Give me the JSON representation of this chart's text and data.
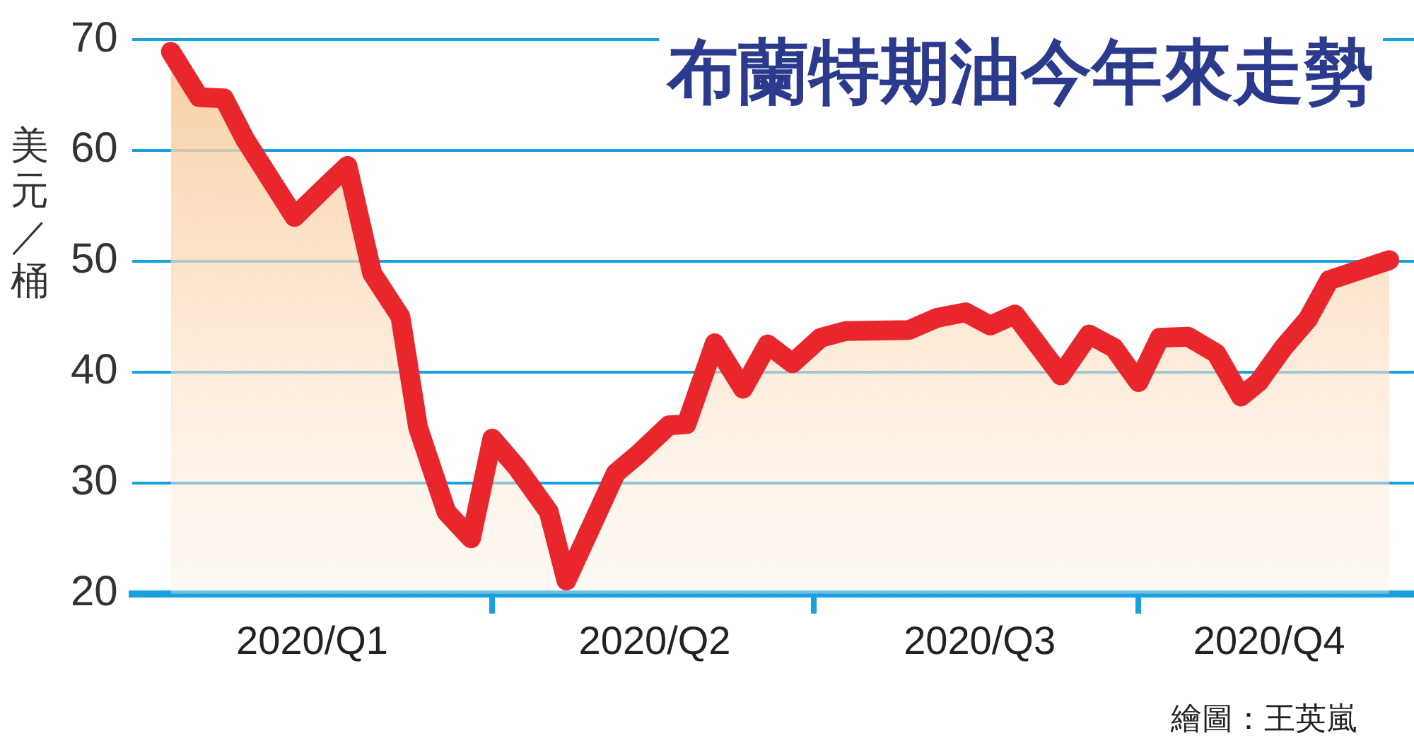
{
  "chart_data": {
    "type": "area",
    "title": "布蘭特期油今年來走勢",
    "ylabel": "美元／桶",
    "annotations": [
      "繪圖：王英嵐"
    ],
    "x": [
      "2020-01-01",
      "2020-01-09",
      "2020-01-16",
      "2020-01-22",
      "2020-02-05",
      "2020-02-15",
      "2020-02-20",
      "2020-02-27",
      "2020-03-06",
      "2020-03-11",
      "2020-03-19",
      "2020-03-26",
      "2020-04-01",
      "2020-04-08",
      "2020-04-17",
      "2020-04-22",
      "2020-05-06",
      "2020-05-12",
      "2020-05-21",
      "2020-05-26",
      "2020-06-03",
      "2020-06-11",
      "2020-06-18",
      "2020-06-25",
      "2020-07-03",
      "2020-07-10",
      "2020-07-28",
      "2020-08-05",
      "2020-08-13",
      "2020-08-20",
      "2020-08-27",
      "2020-09-09",
      "2020-09-17",
      "2020-09-24",
      "2020-10-01",
      "2020-10-07",
      "2020-10-15",
      "2020-10-23",
      "2020-10-30",
      "2020-11-04",
      "2020-11-11",
      "2020-11-18",
      "2020-11-24",
      "2020-12-11"
    ],
    "series": [
      {
        "color": "#e8262b",
        "values": [
          68.9,
          64.8,
          64.7,
          61.0,
          54.0,
          57.1,
          58.6,
          48.9,
          45.0,
          35.0,
          27.4,
          25.0,
          34.0,
          31.4,
          27.4,
          21.2,
          30.9,
          32.5,
          35.2,
          35.3,
          42.6,
          38.5,
          42.5,
          40.8,
          43.1,
          43.7,
          43.8,
          44.9,
          45.4,
          44.2,
          45.2,
          39.7,
          43.4,
          42.2,
          39.1,
          43.1,
          43.2,
          41.7,
          37.8,
          39.1,
          42.2,
          44.8,
          48.3,
          50.1
        ]
      }
    ],
    "xlim": [
      "2019-12-21",
      "2020-12-18"
    ],
    "xticks": [
      {
        "value": "2020-02-10",
        "label": "2020/Q1"
      },
      {
        "value": "2020-04-01",
        "label": null
      },
      {
        "value": "2020-05-17",
        "label": "2020/Q2"
      },
      {
        "value": "2020-07-01",
        "label": null
      },
      {
        "value": "2020-08-17",
        "label": "2020/Q3"
      },
      {
        "value": "2020-10-01",
        "label": null
      },
      {
        "value": "2020-11-07",
        "label": "2020/Q4"
      }
    ],
    "ylim": [
      20,
      70
    ],
    "yticks": [
      20,
      30,
      40,
      50,
      60,
      70
    ],
    "grid": "y",
    "legend": false,
    "marker": "none",
    "line_style": "solid"
  }
}
